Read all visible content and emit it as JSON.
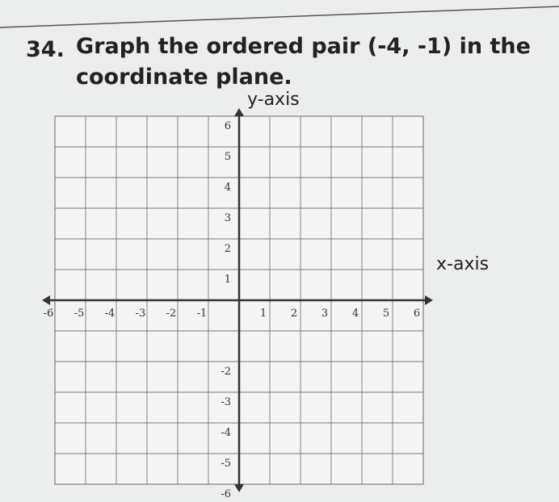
{
  "question": {
    "number": "34.",
    "lines": [
      "Graph the ordered pair (-4, -1) in the",
      "coordinate plane."
    ]
  },
  "plane": {
    "y_axis_label": "y-axis",
    "x_axis_label": "x-axis",
    "x_tick_labels": [
      "-6",
      "-5",
      "-4",
      "-3",
      "-2",
      "-1",
      "1",
      "2",
      "3",
      "4",
      "5",
      "6"
    ],
    "y_tick_labels": [
      "6",
      "5",
      "4",
      "3",
      "2",
      "1",
      "-2",
      "-3",
      "-4",
      "-5",
      "-6"
    ]
  }
}
